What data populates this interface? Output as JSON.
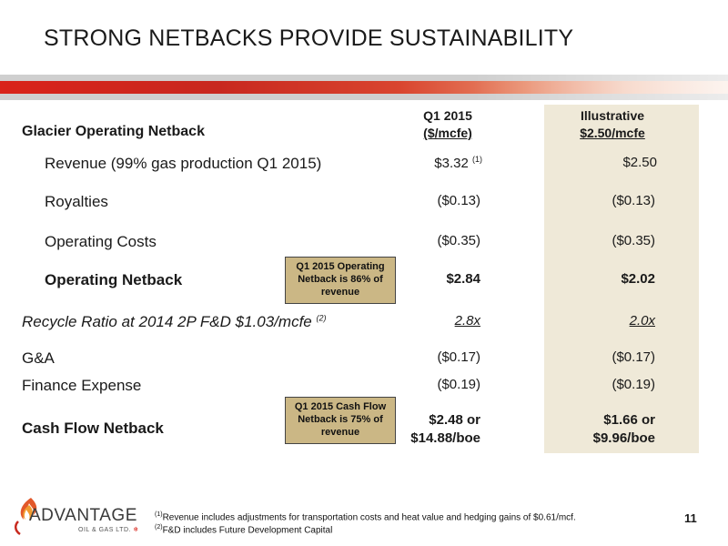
{
  "title": "STRONG NETBACKS PROVIDE SUSTAINABILITY",
  "table": {
    "section_label": "Glacier Operating Netback",
    "col1_header": [
      "Q1 2015",
      "($/mcfe)"
    ],
    "col2_header": [
      "Illustrative",
      "$2.50/mcfe"
    ],
    "rows": [
      {
        "label": "Revenue (99% gas production Q1 2015)",
        "col1": "$3.32",
        "col1_sup": "(1)",
        "col2": "$2.50"
      },
      {
        "label": "Royalties",
        "col1": "($0.13)",
        "col2": "($0.13)"
      },
      {
        "label": "Operating Costs",
        "col1": "($0.35)",
        "col2": "($0.35)"
      },
      {
        "label": "Operating Netback",
        "col1": "$2.84",
        "col2": "$2.02"
      },
      {
        "label": "Recycle Ratio at 2014 2P F&D $1.03/mcfe",
        "label_sup": "(2)",
        "col1": "2.8x",
        "col2": "2.0x"
      },
      {
        "label": "G&A",
        "col1": "($0.17)",
        "col2": "($0.17)"
      },
      {
        "label": "Finance Expense",
        "col1": "($0.19)",
        "col2": "($0.19)"
      },
      {
        "label": "Cash Flow Netback",
        "col1": [
          "$2.48 or",
          "$14.88/boe"
        ],
        "col2": [
          "$1.66 or",
          "$9.96/boe"
        ]
      }
    ]
  },
  "callouts": {
    "operating": [
      "Q1 2015 Operating",
      "Netback is 86% of",
      "revenue"
    ],
    "cashflow": [
      "Q1 2015 Cash Flow",
      "Netback is 75% of",
      "revenue"
    ]
  },
  "footnotes": [
    {
      "mark": "(1)",
      "text": "Revenue includes adjustments for transportation costs and heat value and hedging gains of $0.61/mcf."
    },
    {
      "mark": "(2)",
      "text": "F&D includes Future Development Capital"
    }
  ],
  "logo": {
    "name": "ADVANTAGE",
    "sub": "OIL & GAS LTD."
  },
  "page_number": "11",
  "colors": {
    "accent_red": "#d9231a",
    "callout_fill": "#cbb785",
    "highlight_col": "#efe9d8"
  }
}
